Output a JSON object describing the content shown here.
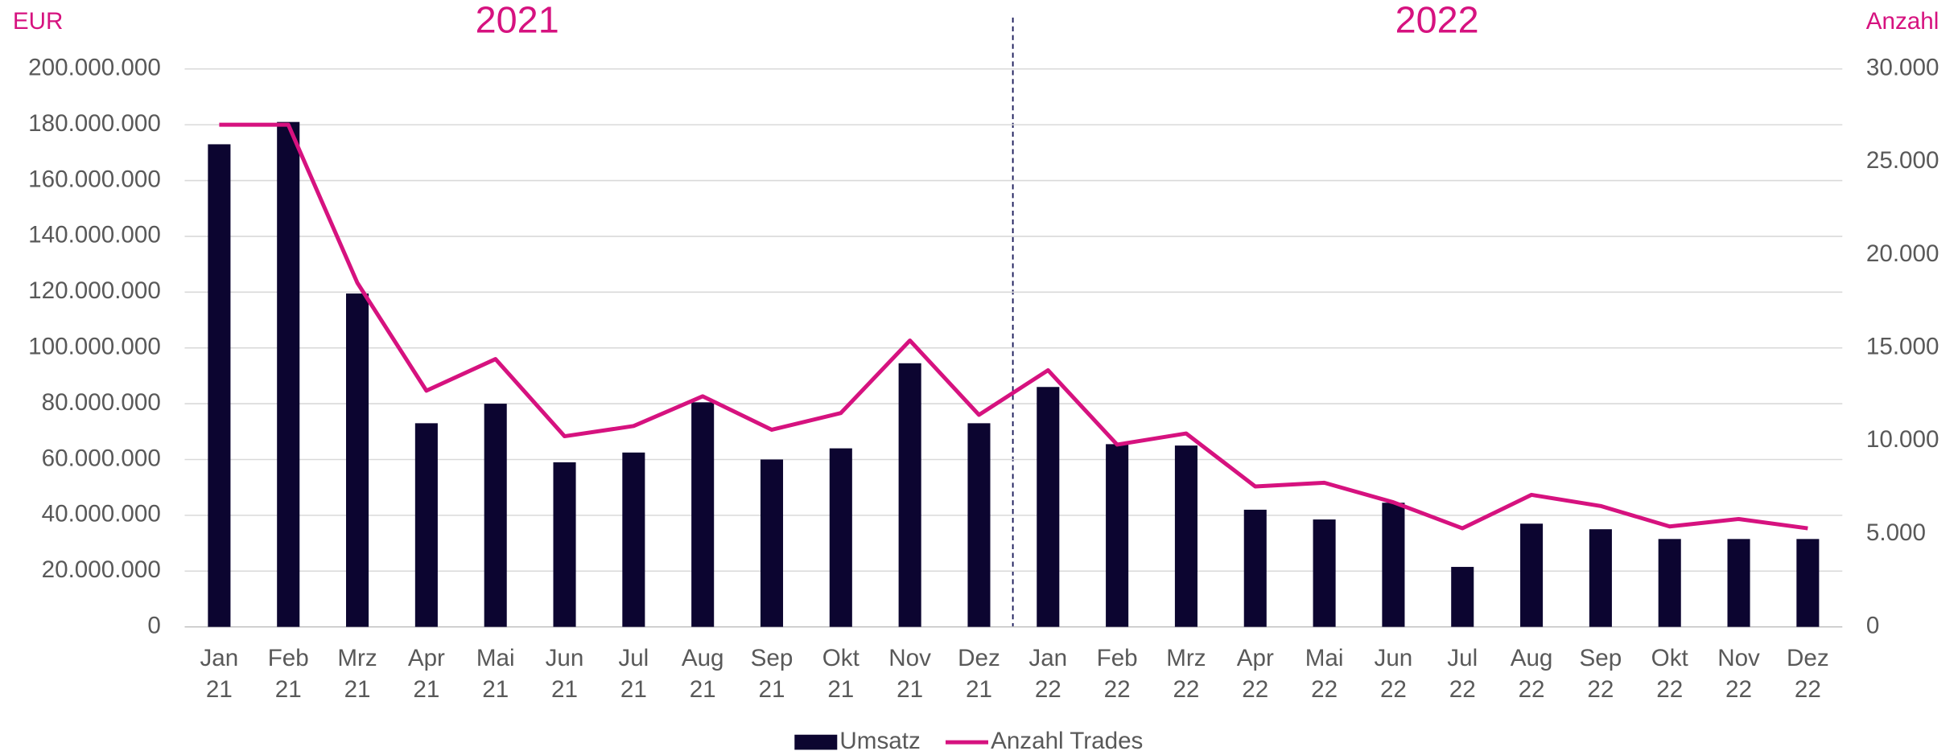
{
  "chart_data": {
    "type": "bar_line",
    "annotations": [
      "2021",
      "2022"
    ],
    "y_axis_label": "EUR",
    "y2_axis_label": "Anzahl",
    "categories": [
      "Jan 21",
      "Feb 21",
      "Mrz 21",
      "Apr 21",
      "Mai 21",
      "Jun 21",
      "Jul 21",
      "Aug 21",
      "Sep 21",
      "Okt 21",
      "Nov 21",
      "Dez 21",
      "Jan 22",
      "Feb 22",
      "Mrz 22",
      "Apr 22",
      "Mai 22",
      "Jun 22",
      "Jul 22",
      "Aug 22",
      "Sep 22",
      "Okt 22",
      "Nov 22",
      "Dez 22"
    ],
    "series": [
      {
        "name": "Umsatz",
        "type": "bar",
        "color": "#0c0530",
        "values": [
          173000000,
          181000000,
          119500000,
          73000000,
          80000000,
          59000000,
          62500000,
          80500000,
          60000000,
          64000000,
          94500000,
          73000000,
          86000000,
          65500000,
          65000000,
          42000000,
          38500000,
          44500000,
          21500000,
          37000000,
          35000000,
          31500000,
          31500000,
          31500000
        ]
      },
      {
        "name": "Anzahl Trades",
        "type": "line",
        "axis": "y2",
        "color": "#d6127f",
        "values": [
          27000,
          27000,
          18500,
          12700,
          14400,
          10250,
          10800,
          12400,
          10600,
          11500,
          15400,
          11400,
          13800,
          9800,
          10400,
          7550,
          7750,
          6700,
          5300,
          7100,
          6500,
          5400,
          5800,
          5300
        ]
      }
    ],
    "ylim": [
      0,
      200000000
    ],
    "yticks": [
      0,
      {
        "value": 20000000,
        "label": "20.000.000"
      },
      {
        "value": 40000000,
        "label": "40.000.000"
      },
      {
        "value": 60000000,
        "label": "60.000.000"
      },
      {
        "value": 80000000,
        "label": "80.000.000"
      },
      {
        "value": 100000000,
        "label": "100.000.000"
      },
      {
        "value": 120000000,
        "label": "120.000.000"
      },
      {
        "value": 140000000,
        "label": "140.000.000"
      },
      {
        "value": 160000000,
        "label": "160.000.000"
      },
      {
        "value": 180000000,
        "label": "180.000.000"
      },
      {
        "value": 200000000,
        "label": "200.000.000"
      }
    ],
    "y2lim": [
      0,
      30000
    ],
    "y2ticks": [
      0,
      {
        "value": 5000,
        "label": "5.000"
      },
      {
        "value": 10000,
        "label": "10.000"
      },
      {
        "value": 15000,
        "label": "15.000"
      },
      {
        "value": 20000,
        "label": "20.000"
      },
      {
        "value": 25000,
        "label": "25.000"
      },
      {
        "value": 30000,
        "label": "30.000"
      }
    ],
    "grid": true,
    "legend": "bottom"
  }
}
